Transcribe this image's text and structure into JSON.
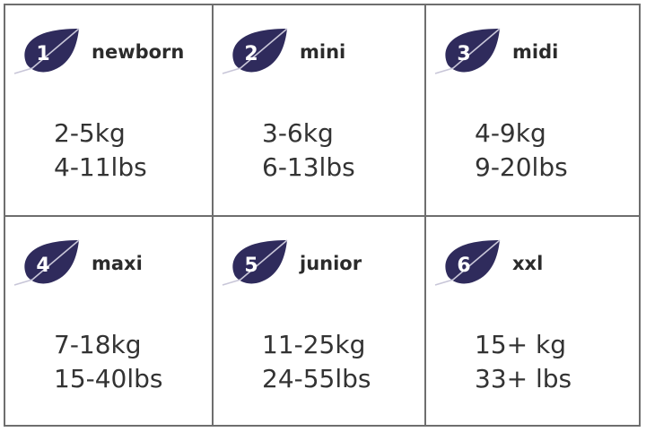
{
  "colors": {
    "leaf": "#2f2b5c",
    "border": "#6e6e6e",
    "text": "#333333"
  },
  "sizes": [
    {
      "number": "1",
      "name": "newborn",
      "kg": "2-5kg",
      "lbs": "4-11lbs"
    },
    {
      "number": "2",
      "name": "mini",
      "kg": "3-6kg",
      "lbs": "6-13lbs"
    },
    {
      "number": "3",
      "name": "midi",
      "kg": "4-9kg",
      "lbs": "9-20lbs"
    },
    {
      "number": "4",
      "name": "maxi",
      "kg": "7-18kg",
      "lbs": "15-40lbs"
    },
    {
      "number": "5",
      "name": "junior",
      "kg": "11-25kg",
      "lbs": "24-55lbs"
    },
    {
      "number": "6",
      "name": "xxl",
      "kg": "15+ kg",
      "lbs": "33+ lbs"
    }
  ]
}
